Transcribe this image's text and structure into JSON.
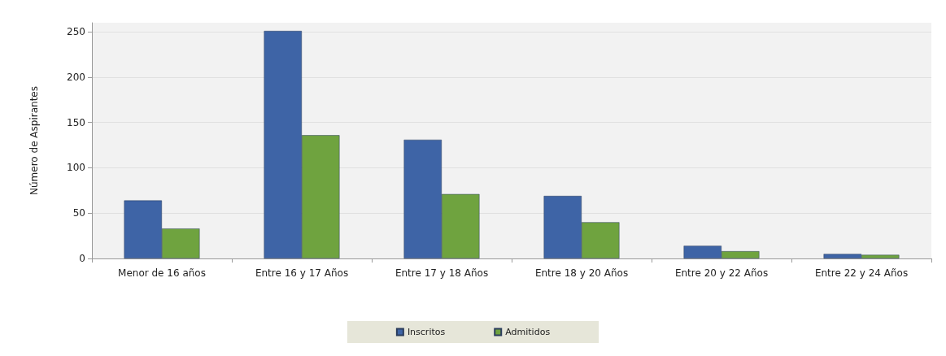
{
  "chart_data": {
    "type": "bar",
    "ylabel": "Número de Aspirantes",
    "categories": [
      "Menor de 16 años",
      "Entre 16 y 17 Años",
      "Entre 17 y 18 Años",
      "Entre 18 y 20 Años",
      "Entre 20 y 22 Años",
      "Entre 22 y 24 Años"
    ],
    "series": [
      {
        "name": "Inscritos",
        "color": "#3e64a6",
        "values": [
          64,
          251,
          131,
          69,
          14,
          5
        ]
      },
      {
        "name": "Admitidos",
        "color": "#6fa33f",
        "values": [
          33,
          136,
          71,
          40,
          8,
          4
        ]
      }
    ],
    "ylim": [
      0,
      260
    ],
    "yticks": [
      0,
      50,
      100,
      150,
      200,
      250
    ],
    "grid": "y",
    "legend": "bottom"
  }
}
